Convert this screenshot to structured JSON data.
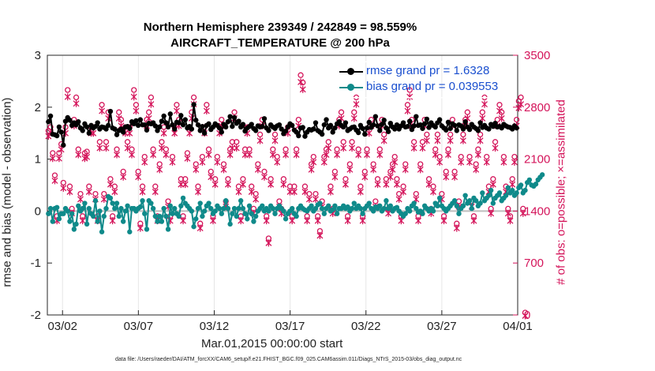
{
  "chart_data": {
    "type": "line",
    "title": "Northern Hemisphere 239349 / 242849 = 98.559%",
    "subtitle": "AIRCRAFT_TEMPERATURE @ 200 hPa",
    "xlabel": "Mar.01,2015 00:00:00 start",
    "ylabel_left": "rmse and bias (model - observation)",
    "ylabel_right": "# of obs: o=possible; ×=assimilated",
    "footer": "data file: /Users/raeder/DAI/ATM_forcXX/CAM6_setup/f.e21.FHIST_BGC.f09_025.CAM6assim.011/Diags_NTrS_2015-03/obs_diag_output.nc",
    "x_ticks": [
      "03/02",
      "03/07",
      "03/12",
      "03/17",
      "03/22",
      "03/27",
      "04/01"
    ],
    "x_tick_days": [
      1,
      6,
      11,
      16,
      21,
      26,
      31
    ],
    "x_range_days": [
      0,
      31
    ],
    "y_left_ticks": [
      "-2",
      "-1",
      "0",
      "1",
      "2",
      "3"
    ],
    "y_left_range": [
      -2,
      3
    ],
    "y_right_ticks": [
      "0",
      "700",
      "1400",
      "2100",
      "2800",
      "3500"
    ],
    "y_right_range": [
      0,
      3500
    ],
    "grid": "x-only",
    "legend_location": "top-right",
    "colors": {
      "rmse": "#000000",
      "bias": "#0f8a8a",
      "obs": "#d4145a",
      "legend_text": "#1a4fcf",
      "zero_line": "#bdbdbd"
    },
    "series": [
      {
        "name": "rmse grand pr = 1.6328",
        "axis": "left",
        "values": [
          1.72,
          1.83,
          1.48,
          1.47,
          1.45,
          1.62,
          1.52,
          1.27,
          1.73,
          1.8,
          1.75,
          1.65,
          1.7,
          1.66,
          1.72,
          1.6,
          1.55,
          1.68,
          1.62,
          1.5,
          1.65,
          1.6,
          1.63,
          1.7,
          1.58,
          1.62,
          1.61,
          1.58,
          1.65,
          1.92,
          1.6,
          1.58,
          1.47,
          1.55,
          1.58,
          1.52,
          1.62,
          1.63,
          1.59,
          1.72,
          1.68,
          1.74,
          1.65,
          1.76,
          1.66,
          1.66,
          1.56,
          1.69,
          1.68,
          1.7,
          1.64,
          1.55,
          1.62,
          1.73,
          1.83,
          1.7,
          1.62,
          1.87,
          1.66,
          1.58,
          1.71,
          1.7,
          1.84,
          1.66,
          1.76,
          1.6,
          1.63,
          1.58,
          2.05,
          1.75,
          1.66,
          1.55,
          1.63,
          1.5,
          1.65,
          1.68,
          1.57,
          1.62,
          1.68,
          1.65,
          1.6,
          1.52,
          1.67,
          1.62,
          1.72,
          1.82,
          1.63,
          1.8,
          1.69,
          1.73,
          1.62,
          1.67,
          1.54,
          1.6,
          1.63,
          1.67,
          1.59,
          1.55,
          1.64,
          1.62,
          1.63,
          1.78,
          1.6,
          1.55,
          1.66,
          1.62,
          1.59,
          1.64,
          1.66,
          1.58,
          1.49,
          1.54,
          1.62,
          1.68,
          1.65,
          1.56,
          1.52,
          1.45,
          1.6,
          1.61,
          1.44,
          1.52,
          1.57,
          1.56,
          1.58,
          1.7,
          1.55,
          1.52,
          1.48,
          1.66,
          1.76,
          1.6,
          1.65,
          1.52,
          1.6,
          1.68,
          1.72,
          1.65,
          1.62,
          1.7,
          1.55,
          1.58,
          1.61,
          1.62,
          1.56,
          1.51,
          1.65,
          1.59,
          1.48,
          1.6,
          1.71,
          1.61,
          1.66,
          1.82,
          1.64,
          1.55,
          1.67,
          1.75,
          1.6,
          1.53,
          1.69,
          1.62,
          1.58,
          1.66,
          1.58,
          1.64,
          1.7,
          1.62,
          1.63,
          1.73,
          1.57,
          1.64,
          1.82,
          1.65,
          1.66,
          1.59,
          1.68,
          1.77,
          1.61,
          1.7,
          1.65,
          1.62,
          1.7,
          1.76,
          1.64,
          1.6,
          1.56,
          1.71,
          1.59,
          1.68,
          1.65,
          1.55,
          1.66,
          1.64,
          1.58,
          1.72,
          1.62,
          1.57,
          1.67,
          1.62,
          1.59,
          1.55,
          1.7,
          1.61,
          1.65,
          1.6,
          1.58,
          1.67,
          1.63,
          1.69,
          1.62,
          1.63,
          1.6,
          1.67,
          1.64,
          1.62,
          1.61,
          1.58,
          1.64,
          1.6
        ]
      },
      {
        "name": "bias grand pr = 0.039553",
        "axis": "left",
        "values": [
          -0.05,
          0.05,
          -0.2,
          0.05,
          0.07,
          -0.15,
          -0.05,
          -0.05,
          0.05,
          0.0,
          -0.2,
          -0.05,
          -0.35,
          -0.25,
          0.1,
          0.0,
          0.05,
          0.15,
          -0.25,
          0.05,
          -0.05,
          -0.1,
          0.2,
          -0.2,
          0.0,
          -0.4,
          -0.1,
          0.05,
          0.28,
          0.25,
          0.15,
          0.05,
          0.15,
          -0.1,
          0.05,
          -0.2,
          0.0,
          0.1,
          -0.4,
          0.05,
          0.05,
          0.0,
          0.05,
          0.08,
          0.2,
          -0.05,
          -0.35,
          0.2,
          0.15,
          0.05,
          -0.1,
          -0.2,
          -0.1,
          -0.2,
          0.05,
          -0.1,
          -0.35,
          0.1,
          -0.05,
          0.05,
          -0.05,
          -0.1,
          0.1,
          0.25,
          0.15,
          0.1,
          0.05,
          0.0,
          -0.3,
          -0.15,
          0.05,
          0.15,
          -0.1,
          0.0,
          0.1,
          0.15,
          0.05,
          -0.05,
          0.0,
          0.1,
          0.05,
          -0.05,
          0.05,
          0.2,
          0.05,
          -0.25,
          -0.05,
          0.05,
          -0.1,
          0.05,
          0.2,
          0.05,
          -0.05,
          -0.15,
          0.1,
          -0.05,
          -0.2,
          -0.1,
          0.0,
          0.05,
          0.1,
          0.0,
          0.05,
          0.0,
          0.1,
          0.05,
          -0.05,
          0.05,
          0.1,
          0.05,
          0.0,
          -0.15,
          -0.05,
          0.0,
          0.05,
          -0.05,
          -0.1,
          0.05,
          0.1,
          0.05,
          0.02,
          0.0,
          0.05,
          0.1,
          0.0,
          0.05,
          0.12,
          0.15,
          0.05,
          -0.05,
          0.05,
          0.1,
          0.0,
          0.03,
          0.1,
          -0.05,
          0.05,
          0.05,
          0.1,
          0.05,
          0.08,
          0.0,
          0.05,
          0.15,
          0.05,
          0.1,
          0.05,
          -0.05,
          0.05,
          0.1,
          0.15,
          0.05,
          0.0,
          0.08,
          0.05,
          0.1,
          0.0,
          0.05,
          0.2,
          0.05,
          0.1,
          0.0,
          0.05,
          0.07,
          0.0,
          -0.05,
          -0.1,
          -0.05,
          0.05,
          0.0,
          0.1,
          0.15,
          0.05,
          -0.02,
          0.0,
          -0.05,
          0.1,
          0.05,
          0.0,
          0.05,
          0.0,
          0.15,
          0.1,
          0.25,
          0.1,
          0.05,
          0.0,
          0.05,
          0.1,
          0.15,
          0.2,
          0.1,
          -0.05,
          0.05,
          0.1,
          0.3,
          0.15,
          0.2,
          0.05,
          0.25,
          0.2,
          0.1,
          0.15,
          0.35,
          0.2,
          0.25,
          0.3,
          0.4,
          0.15,
          0.25,
          0.3,
          0.35,
          0.2,
          0.25,
          0.3,
          0.45,
          0.35,
          0.4,
          0.3,
          0.35,
          0.45,
          0.5,
          0.35,
          0.4,
          0.55,
          0.6,
          0.5,
          0.48,
          0.52,
          0.6,
          0.65,
          0.7
        ]
      },
      {
        "name": "obs possible",
        "axis": "right",
        "marker": "o",
        "values": [
          2450,
          2500,
          2150,
          1850,
          1300,
          2150,
          2270,
          1750,
          2500,
          3000,
          1700,
          1400,
          2600,
          2900,
          2200,
          1600,
          1300,
          2150,
          2170,
          1700,
          2500,
          2500,
          1600,
          1300,
          2300,
          2800,
          1600,
          2300,
          2700,
          1800,
          1300,
          1700,
          2200,
          2700,
          2600,
          1900,
          2500,
          2300,
          2500,
          2200,
          3000,
          2800,
          1900,
          1200,
          1700,
          2100,
          2600,
          2700,
          2900,
          2200,
          1700,
          1300,
          2000,
          2300,
          2500,
          2200,
          1500,
          1300,
          2100,
          2500,
          2800,
          2600,
          1800,
          1300,
          1800,
          2150,
          2500,
          2700,
          2900,
          2000,
          1700,
          1200,
          2100,
          2500,
          2800,
          2200,
          1900,
          1300,
          1800,
          2100,
          2500,
          2600,
          2000,
          1500,
          1800,
          2200,
          2300,
          2700,
          2300,
          1700,
          1300,
          1800,
          2200,
          2500,
          2200,
          1700,
          1400,
          1600,
          2000,
          2400,
          2600,
          1900,
          1300,
          1000,
          1800,
          2200,
          2400,
          2100,
          1500,
          1400,
          1800,
          2200,
          2500,
          1700,
          1300,
          1700,
          2200,
          2600,
          3200,
          3100,
          1700,
          1300,
          1600,
          2000,
          2100,
          1600,
          1300,
          1100,
          1500,
          2100,
          2200,
          2300,
          1700,
          1400,
          1900,
          2200,
          2600,
          2700,
          2300,
          1800,
          1300,
          2000,
          2300,
          2700,
          2900,
          2200,
          1700,
          1300,
          1900,
          2200,
          2500,
          2600,
          2000,
          1500,
          1800,
          2200,
          2600,
          2400,
          1800,
          1400,
          1900,
          2000,
          2100,
          1800,
          1600,
          1300,
          1700,
          2000,
          2800,
          3000,
          2600,
          2300,
          1600,
          1300,
          2000,
          2300,
          2600,
          2400,
          1800,
          1400,
          1700,
          2200,
          2400,
          2100,
          1600,
          1300,
          1900,
          2200,
          2400,
          2600,
          1900,
          1200,
          1500,
          2100,
          2400,
          2600,
          2700,
          2100,
          1500,
          1300,
          2000,
          2200,
          2400,
          2700,
          2900,
          2100,
          1700,
          1400,
          1800,
          2300,
          2600,
          2800,
          2700,
          2100,
          1700,
          1400,
          1300,
          1800,
          2100,
          2600,
          2850,
          2900,
          1400,
          0
        ]
      },
      {
        "name": "obs assimilated",
        "axis": "right",
        "marker": "x",
        "values": [
          2420,
          2470,
          2120,
          1820,
          1280,
          2120,
          2240,
          1720,
          2460,
          2950,
          1670,
          1380,
          2560,
          2860,
          2170,
          1570,
          1280,
          2120,
          2140,
          1670,
          2460,
          2460,
          1570,
          1280,
          2260,
          2760,
          1570,
          2260,
          2660,
          1770,
          1280,
          1670,
          2170,
          2660,
          2560,
          1870,
          2460,
          2260,
          2460,
          2170,
          2950,
          2760,
          1870,
          1180,
          1670,
          2070,
          2560,
          2660,
          2850,
          2170,
          1670,
          1280,
          1970,
          2260,
          2460,
          2170,
          1470,
          1280,
          2070,
          2460,
          2760,
          2560,
          1770,
          1280,
          1770,
          2120,
          2460,
          2660,
          2850,
          1970,
          1670,
          1180,
          2070,
          2460,
          2760,
          2170,
          1870,
          1280,
          1770,
          2070,
          2460,
          2560,
          1970,
          1470,
          1770,
          2170,
          2260,
          2660,
          2260,
          1670,
          1280,
          1770,
          2170,
          2460,
          2170,
          1670,
          1380,
          1570,
          1970,
          2360,
          2560,
          1870,
          1280,
          980,
          1770,
          2170,
          2360,
          2070,
          1470,
          1380,
          1770,
          2170,
          2460,
          1670,
          1280,
          1670,
          2170,
          2560,
          3150,
          3050,
          1670,
          1280,
          1570,
          1970,
          2070,
          1570,
          1280,
          1080,
          1470,
          2070,
          2170,
          2260,
          1670,
          1380,
          1870,
          2170,
          2560,
          2660,
          2260,
          1770,
          1280,
          1970,
          2260,
          2660,
          2850,
          2170,
          1670,
          1280,
          1870,
          2170,
          2460,
          2560,
          1970,
          1470,
          1770,
          2170,
          2560,
          2360,
          1770,
          1380,
          1870,
          1970,
          2070,
          1770,
          1570,
          1280,
          1670,
          1970,
          2760,
          2950,
          2560,
          2260,
          1570,
          1280,
          1970,
          2260,
          2560,
          2360,
          1770,
          1380,
          1670,
          2170,
          2360,
          2070,
          1570,
          1280,
          1870,
          2170,
          2360,
          2560,
          1870,
          1180,
          1470,
          2070,
          2360,
          2560,
          2660,
          2070,
          1470,
          1280,
          1970,
          2170,
          2360,
          2660,
          2850,
          2070,
          1670,
          1380,
          1770,
          2260,
          2560,
          2760,
          2660,
          2070,
          1670,
          1380,
          1280,
          1770,
          2070,
          2560,
          2800,
          2850,
          1380,
          0
        ]
      }
    ]
  }
}
